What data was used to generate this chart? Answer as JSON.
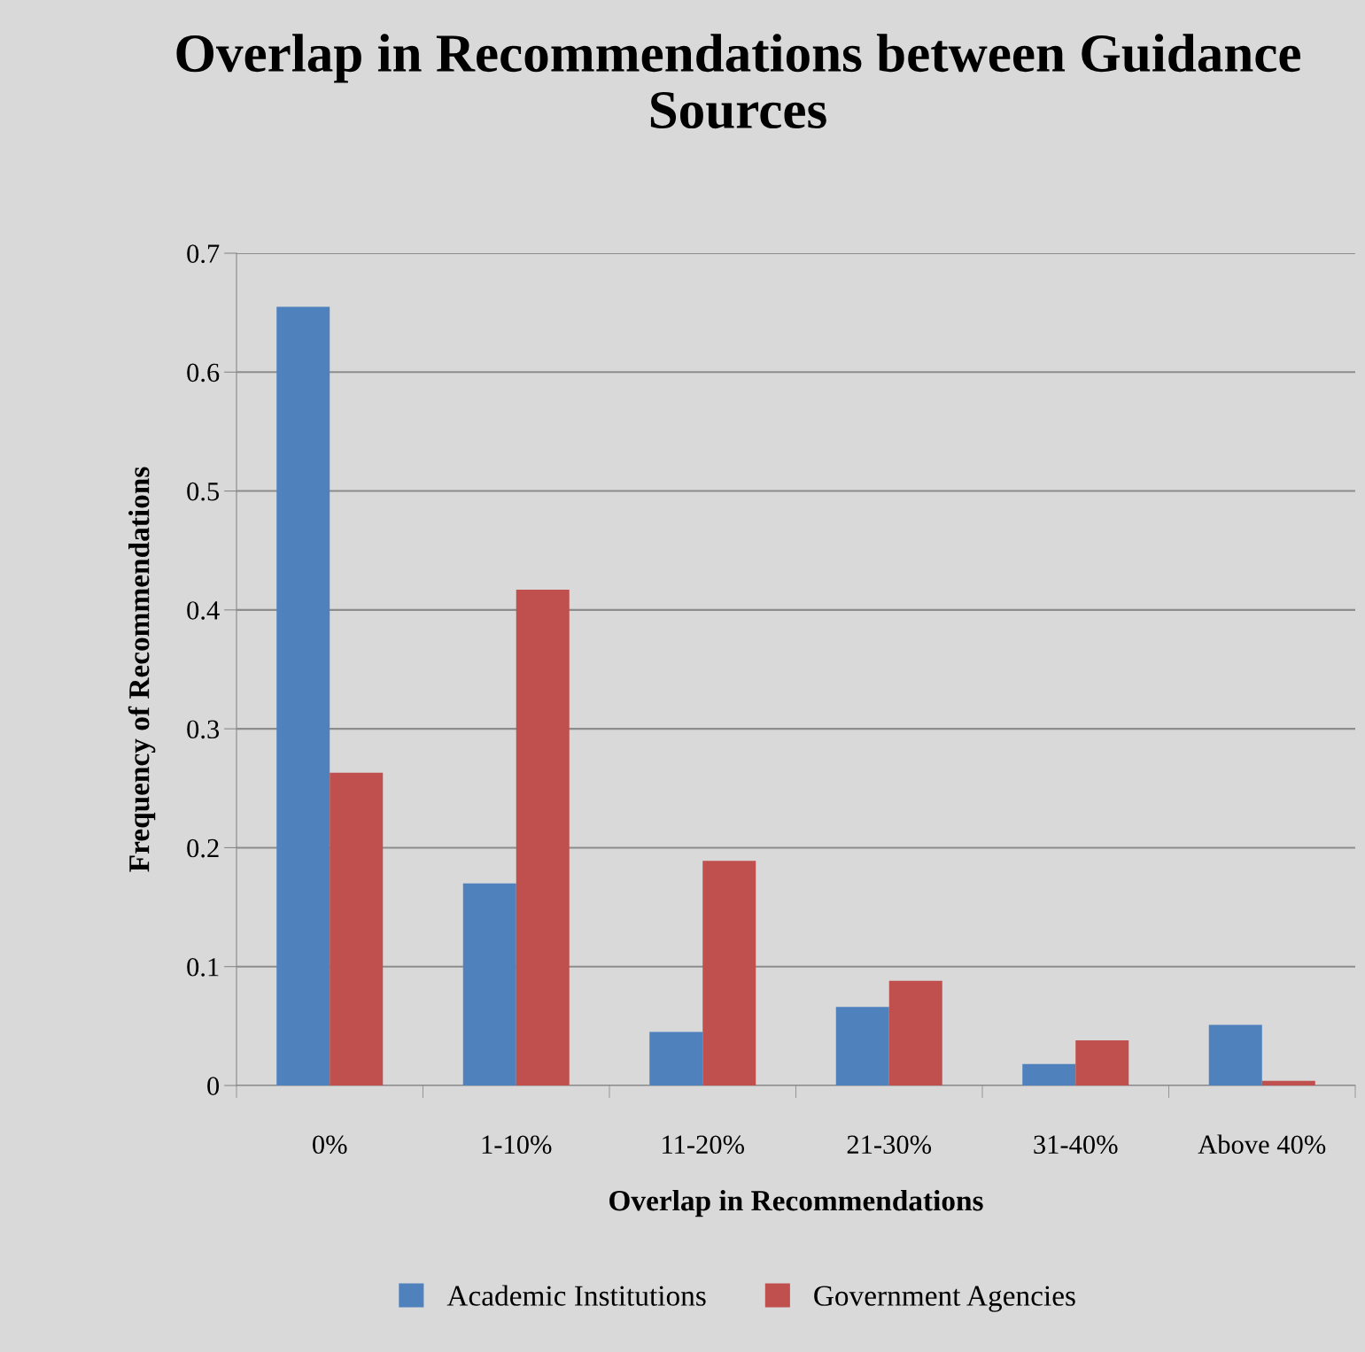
{
  "chart_data": {
    "type": "bar",
    "title": "Overlap in Recommendations between Guidance Sources",
    "xlabel": "Overlap in Recommendations",
    "ylabel": "Frequency of Recommendations",
    "categories": [
      "0%",
      "1-10%",
      "11-20%",
      "21-30%",
      "31-40%",
      "Above 40%"
    ],
    "series": [
      {
        "name": "Academic Institutions",
        "color": "#4f81bd",
        "values": [
          0.655,
          0.17,
          0.045,
          0.066,
          0.018,
          0.051
        ]
      },
      {
        "name": "Government Agencies",
        "color": "#c0504d",
        "values": [
          0.263,
          0.417,
          0.189,
          0.088,
          0.038,
          0.004
        ]
      }
    ],
    "ylim": [
      0,
      0.7
    ],
    "yticks": [
      0,
      0.1,
      0.2,
      0.3,
      0.4,
      0.5,
      0.6,
      0.7
    ],
    "grid": "y",
    "legend": "bottom"
  }
}
